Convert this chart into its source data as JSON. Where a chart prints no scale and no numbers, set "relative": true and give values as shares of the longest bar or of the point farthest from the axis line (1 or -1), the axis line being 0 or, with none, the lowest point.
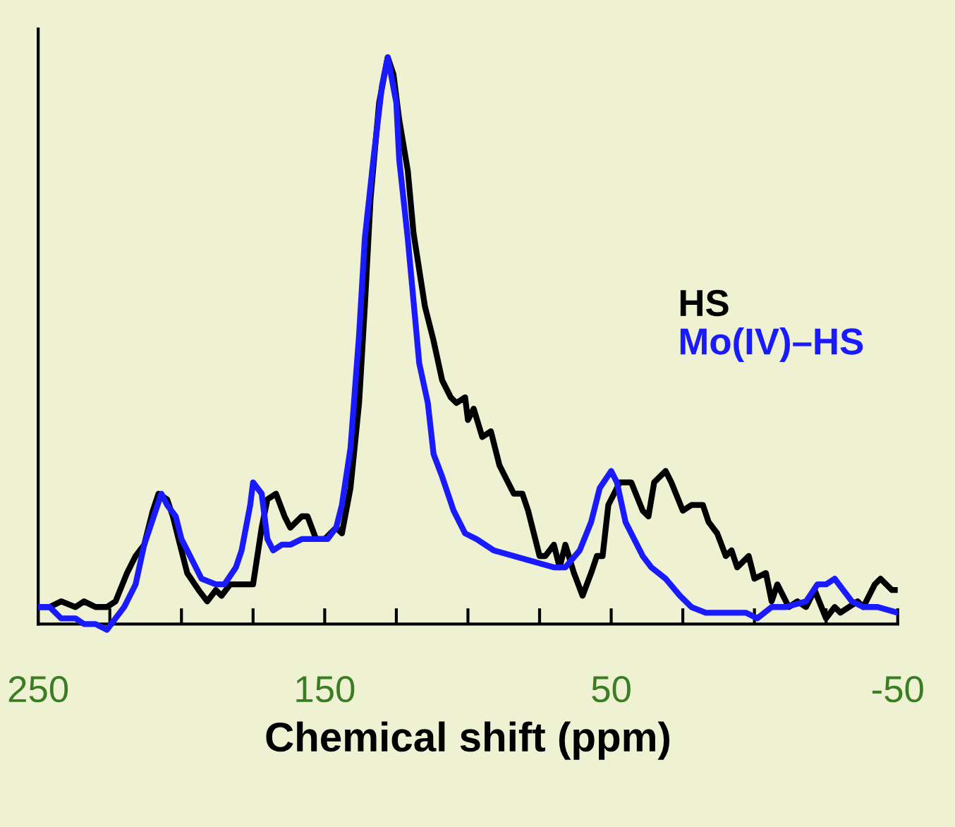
{
  "chart_data": {
    "type": "line",
    "relative": true,
    "xlabel": "Chemical shift (ppm)",
    "legend": "right",
    "grid": false,
    "marker": "none",
    "line_style": "solid",
    "xlim": [
      250,
      -50
    ],
    "xticks": [
      250,
      {
        "value": 225,
        "label": null
      },
      {
        "value": 200,
        "label": null
      },
      {
        "value": 175,
        "label": null
      },
      150,
      {
        "value": 125,
        "label": null
      },
      {
        "value": 100,
        "label": null
      },
      {
        "value": 75,
        "label": null
      },
      50,
      {
        "value": 25,
        "label": null
      },
      {
        "value": 0,
        "label": null
      },
      {
        "value": -25,
        "label": null
      },
      -50
    ],
    "series": [
      {
        "name": "HS",
        "color": "#000000",
        "x": [
          250,
          246,
          242,
          237,
          234,
          230,
          226,
          223,
          219,
          216,
          213,
          210,
          208,
          205,
          203,
          201,
          198,
          194,
          191,
          188,
          186,
          183,
          179,
          175,
          172,
          170,
          167,
          164,
          162,
          158,
          156,
          153,
          150,
          146,
          144,
          141,
          138,
          136,
          134,
          131,
          128,
          126,
          124,
          121,
          119,
          115,
          112,
          109,
          106,
          104,
          101,
          100,
          98,
          95,
          92,
          89,
          87,
          84,
          81,
          79,
          75,
          73,
          70,
          68,
          66,
          63,
          60,
          57,
          55,
          53,
          51,
          50,
          47,
          45,
          43,
          39,
          37,
          35,
          31,
          29,
          25,
          22,
          18,
          16,
          13,
          10,
          8,
          6,
          2,
          0,
          -4,
          -6,
          -8,
          -12,
          -15,
          -18,
          -21,
          -25,
          -28,
          -30,
          -33,
          -36,
          -38,
          -42,
          -44,
          -48,
          -50
        ],
        "values": [
          0.03,
          0.03,
          0.04,
          0.03,
          0.04,
          0.03,
          0.03,
          0.04,
          0.09,
          0.12,
          0.14,
          0.2,
          0.23,
          0.22,
          0.19,
          0.15,
          0.09,
          0.06,
          0.04,
          0.06,
          0.05,
          0.07,
          0.07,
          0.07,
          0.17,
          0.22,
          0.23,
          0.19,
          0.17,
          0.19,
          0.19,
          0.15,
          0.15,
          0.17,
          0.16,
          0.24,
          0.39,
          0.56,
          0.75,
          0.92,
          1,
          0.97,
          0.89,
          0.8,
          0.69,
          0.56,
          0.5,
          0.43,
          0.4,
          0.39,
          0.4,
          0.36,
          0.38,
          0.33,
          0.34,
          0.28,
          0.26,
          0.23,
          0.23,
          0.2,
          0.12,
          0.12,
          0.14,
          0.1,
          0.14,
          0.09,
          0.05,
          0.09,
          0.12,
          0.12,
          0.21,
          0.22,
          0.25,
          0.25,
          0.25,
          0.2,
          0.19,
          0.25,
          0.27,
          0.25,
          0.2,
          0.21,
          0.21,
          0.18,
          0.16,
          0.12,
          0.13,
          0.1,
          0.12,
          0.08,
          0.09,
          0.04,
          0.07,
          0.03,
          0.04,
          0.03,
          0.06,
          0.01,
          0.03,
          0.02,
          0.03,
          0.04,
          0.03,
          0.07,
          0.08,
          0.06,
          0.06
        ]
      },
      {
        "name": "Mo(IV)–HS",
        "color": "#1a1aff",
        "x": [
          250,
          246,
          242,
          237,
          234,
          230,
          226,
          223,
          220,
          216,
          213,
          209,
          207,
          205,
          202,
          200,
          197,
          193,
          188,
          185,
          181,
          179,
          176,
          175,
          172,
          170,
          168,
          165,
          162,
          158,
          154,
          149,
          146,
          144,
          141,
          138,
          136,
          133,
          130,
          128,
          125,
          124,
          121,
          119,
          117,
          114,
          112,
          109,
          105,
          101,
          97,
          91,
          84,
          77,
          70,
          66,
          61,
          57,
          54,
          50,
          48,
          45,
          39,
          36,
          31,
          26,
          22,
          17,
          10,
          3,
          -1,
          -6,
          -11,
          -18,
          -22,
          -25,
          -28,
          -31,
          -34,
          -38,
          -43,
          -50
        ],
        "values": [
          0.03,
          0.03,
          0.01,
          0.01,
          0,
          0,
          -0.01,
          0.01,
          0.03,
          0.07,
          0.14,
          0.2,
          0.23,
          0.21,
          0.19,
          0.15,
          0.12,
          0.08,
          0.07,
          0.07,
          0.1,
          0.13,
          0.21,
          0.25,
          0.23,
          0.15,
          0.13,
          0.14,
          0.14,
          0.15,
          0.15,
          0.15,
          0.17,
          0.21,
          0.31,
          0.51,
          0.68,
          0.82,
          0.95,
          1,
          0.92,
          0.82,
          0.68,
          0.57,
          0.46,
          0.39,
          0.3,
          0.26,
          0.2,
          0.16,
          0.15,
          0.13,
          0.12,
          0.11,
          0.1,
          0.1,
          0.13,
          0.18,
          0.24,
          0.27,
          0.25,
          0.18,
          0.12,
          0.1,
          0.08,
          0.05,
          0.03,
          0.02,
          0.02,
          0.02,
          0.01,
          0.03,
          0.03,
          0.04,
          0.07,
          0.07,
          0.08,
          0.06,
          0.04,
          0.03,
          0.03,
          0.02
        ]
      }
    ]
  }
}
